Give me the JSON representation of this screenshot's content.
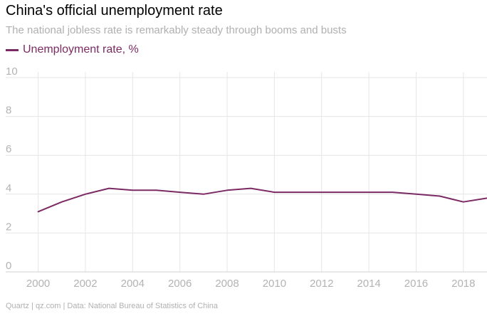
{
  "header": {
    "title": "China's official unemployment rate",
    "subtitle": "The national jobless rate is remarkably steady through booms and busts"
  },
  "footer": {
    "source": "Quartz | qz.com | Data: National Bureau of Statistics of China"
  },
  "colors": {
    "series": "#7b2a63",
    "grid": "#e6e6e6",
    "axis_text": "#b3b3b3"
  },
  "chart_data": {
    "type": "line",
    "title": "China's official unemployment rate",
    "subtitle": "The national jobless rate is remarkably steady through booms and busts",
    "xlabel": "",
    "ylabel": "",
    "xlim": [
      1999.5,
      2019
    ],
    "ylim": [
      0,
      10
    ],
    "x_ticks": [
      2000,
      2002,
      2004,
      2006,
      2008,
      2010,
      2012,
      2014,
      2016,
      2018
    ],
    "y_ticks": [
      0,
      2,
      4,
      6,
      8,
      10
    ],
    "grid": true,
    "legend": "top-left",
    "x": [
      2000,
      2001,
      2002,
      2003,
      2004,
      2005,
      2006,
      2007,
      2008,
      2009,
      2010,
      2011,
      2012,
      2013,
      2014,
      2015,
      2016,
      2017,
      2018,
      2019
    ],
    "series": [
      {
        "name": "Unemployment rate, %",
        "values": [
          3.1,
          3.6,
          4.0,
          4.3,
          4.2,
          4.2,
          4.1,
          4.0,
          4.2,
          4.3,
          4.1,
          4.1,
          4.1,
          4.1,
          4.1,
          4.1,
          4.0,
          3.9,
          3.6,
          3.8
        ]
      }
    ]
  }
}
